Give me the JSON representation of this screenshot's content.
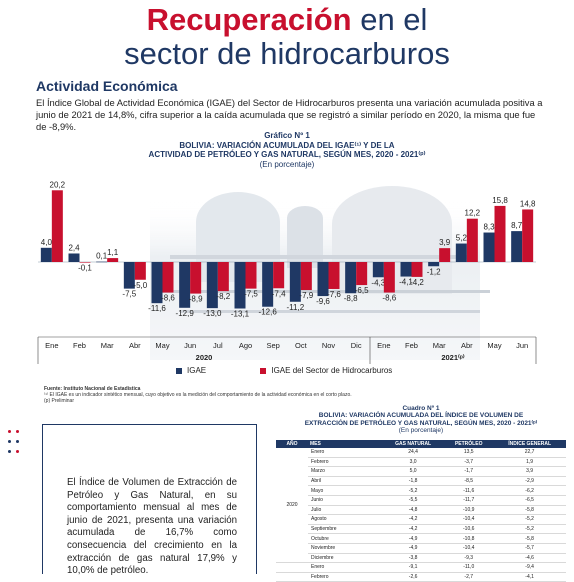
{
  "header": {
    "title_red": "Recuperación",
    "title_rest": "en el",
    "title_line2": "sector de hidrocarburos"
  },
  "section": {
    "title": "Actividad Económica",
    "intro": "El Índice Global de Actividad Económica (IGAE) del Sector de Hidrocarburos presenta una variación acumulada positiva a junio de 2021 de 14,8%, cifra superior a la caída acumulada que se registró a similar período en 2020, la misma que fue de -8,9%."
  },
  "chart_heading": {
    "label": "Gráfico Nº 1",
    "line1": "BOLIVIA: VARIACIÓN ACUMULADA DEL IGAE⁽¹⁾ Y DE LA",
    "line2": "ACTIVIDAD DE PETRÓLEO Y GAS NATURAL, SEGÚN MES, 2020 - 2021⁽ᵖ⁾",
    "line3": "(En porcentaje)"
  },
  "chart_data": {
    "type": "bar",
    "categories": [
      "Ene",
      "Feb",
      "Mar",
      "Abr",
      "May",
      "Jun",
      "Jul",
      "Ago",
      "Sep",
      "Oct",
      "Nov",
      "Dic",
      "Ene",
      "Feb",
      "Mar",
      "Abr",
      "May",
      "Jun"
    ],
    "groups": [
      {
        "label": "2020",
        "count": 12
      },
      {
        "label": "2021⁽ᵖ⁾",
        "count": 6
      }
    ],
    "series": [
      {
        "name": "IGAE",
        "color": "#1f3864",
        "values": [
          4.0,
          2.4,
          0.1,
          -7.5,
          -11.6,
          -12.9,
          -13.0,
          -13.1,
          -12.6,
          -11.2,
          -9.6,
          -8.8,
          -4.3,
          -4.1,
          -1.2,
          5.2,
          8.3,
          8.7
        ]
      },
      {
        "name": "IGAE del Sector de Hidrocarburos",
        "color": "#c8102e",
        "values": [
          20.2,
          -0.1,
          1.1,
          -5.0,
          -8.6,
          -8.9,
          -8.2,
          -7.5,
          -7.4,
          -7.9,
          -7.6,
          -6.5,
          -8.6,
          -4.2,
          3.9,
          12.2,
          15.8,
          14.8
        ]
      }
    ],
    "ylim": [
      -16,
      23
    ]
  },
  "legend": {
    "igae": "IGAE",
    "hidro": "IGAE del Sector de Hidrocarburos"
  },
  "sources": {
    "line1": "Fuente: Instituto Nacional de Estadística",
    "line2": "⁽¹⁾ El IGAE es un indicador sintético mensual, cuyo objetivo es la medición del comportamiento de la actividad económica en el corto plazo.",
    "line3": "(p) Preliminar"
  },
  "textbox": {
    "text": "El Índice de Volumen de Extracción de Petróleo y Gas Natural, en su comportamiento mensual al mes de junio de 2021, presenta una variación acumulada de 16,7% como consecuencia del crecimiento en la extracción de gas natural 17,9% y 10,0% de petróleo."
  },
  "table": {
    "label": "Cuadro Nº 1",
    "title1": "BOLIVIA: VARIACIÓN ACUMULADA DEL ÍNDICE DE VOLUMEN DE",
    "title2": "EXTRACCIÓN DE PETRÓLEO Y GAS NATURAL, SEGÚN MES, 2020 - 2021⁽ᵖ⁾",
    "title3": "(En porcentaje)",
    "headers": [
      "AÑO",
      "MES",
      "GAS NATURAL",
      "PETRÓLEO",
      "ÍNDICE GENERAL"
    ],
    "year_2020": "2020",
    "rows": [
      [
        "Enero",
        "24,4",
        "13,5",
        "22,7"
      ],
      [
        "Febrero",
        "3,0",
        "-3,7",
        "1,9"
      ],
      [
        "Marzo",
        "5,0",
        "-1,7",
        "3,9"
      ],
      [
        "Abril",
        "-1,8",
        "-8,5",
        "-2,9"
      ],
      [
        "Mayo",
        "-5,2",
        "-11,6",
        "-6,2"
      ],
      [
        "Junio",
        "-5,5",
        "-11,7",
        "-6,5"
      ],
      [
        "Julio",
        "-4,8",
        "-10,9",
        "-5,8"
      ],
      [
        "Agosto",
        "-4,2",
        "-10,4",
        "-5,2"
      ],
      [
        "Septiembre",
        "-4,2",
        "-10,6",
        "-5,2"
      ],
      [
        "Octubre",
        "-4,9",
        "-10,8",
        "-5,8"
      ],
      [
        "Noviembre",
        "-4,9",
        "-10,4",
        "-5,7"
      ],
      [
        "Diciembre",
        "-3,8",
        "-9,3",
        "-4,6"
      ],
      [
        "Enero",
        "-9,1",
        "-11,0",
        "-9,4"
      ],
      [
        "Febrero",
        "-2,6",
        "-2,7",
        "-4,1"
      ]
    ]
  }
}
